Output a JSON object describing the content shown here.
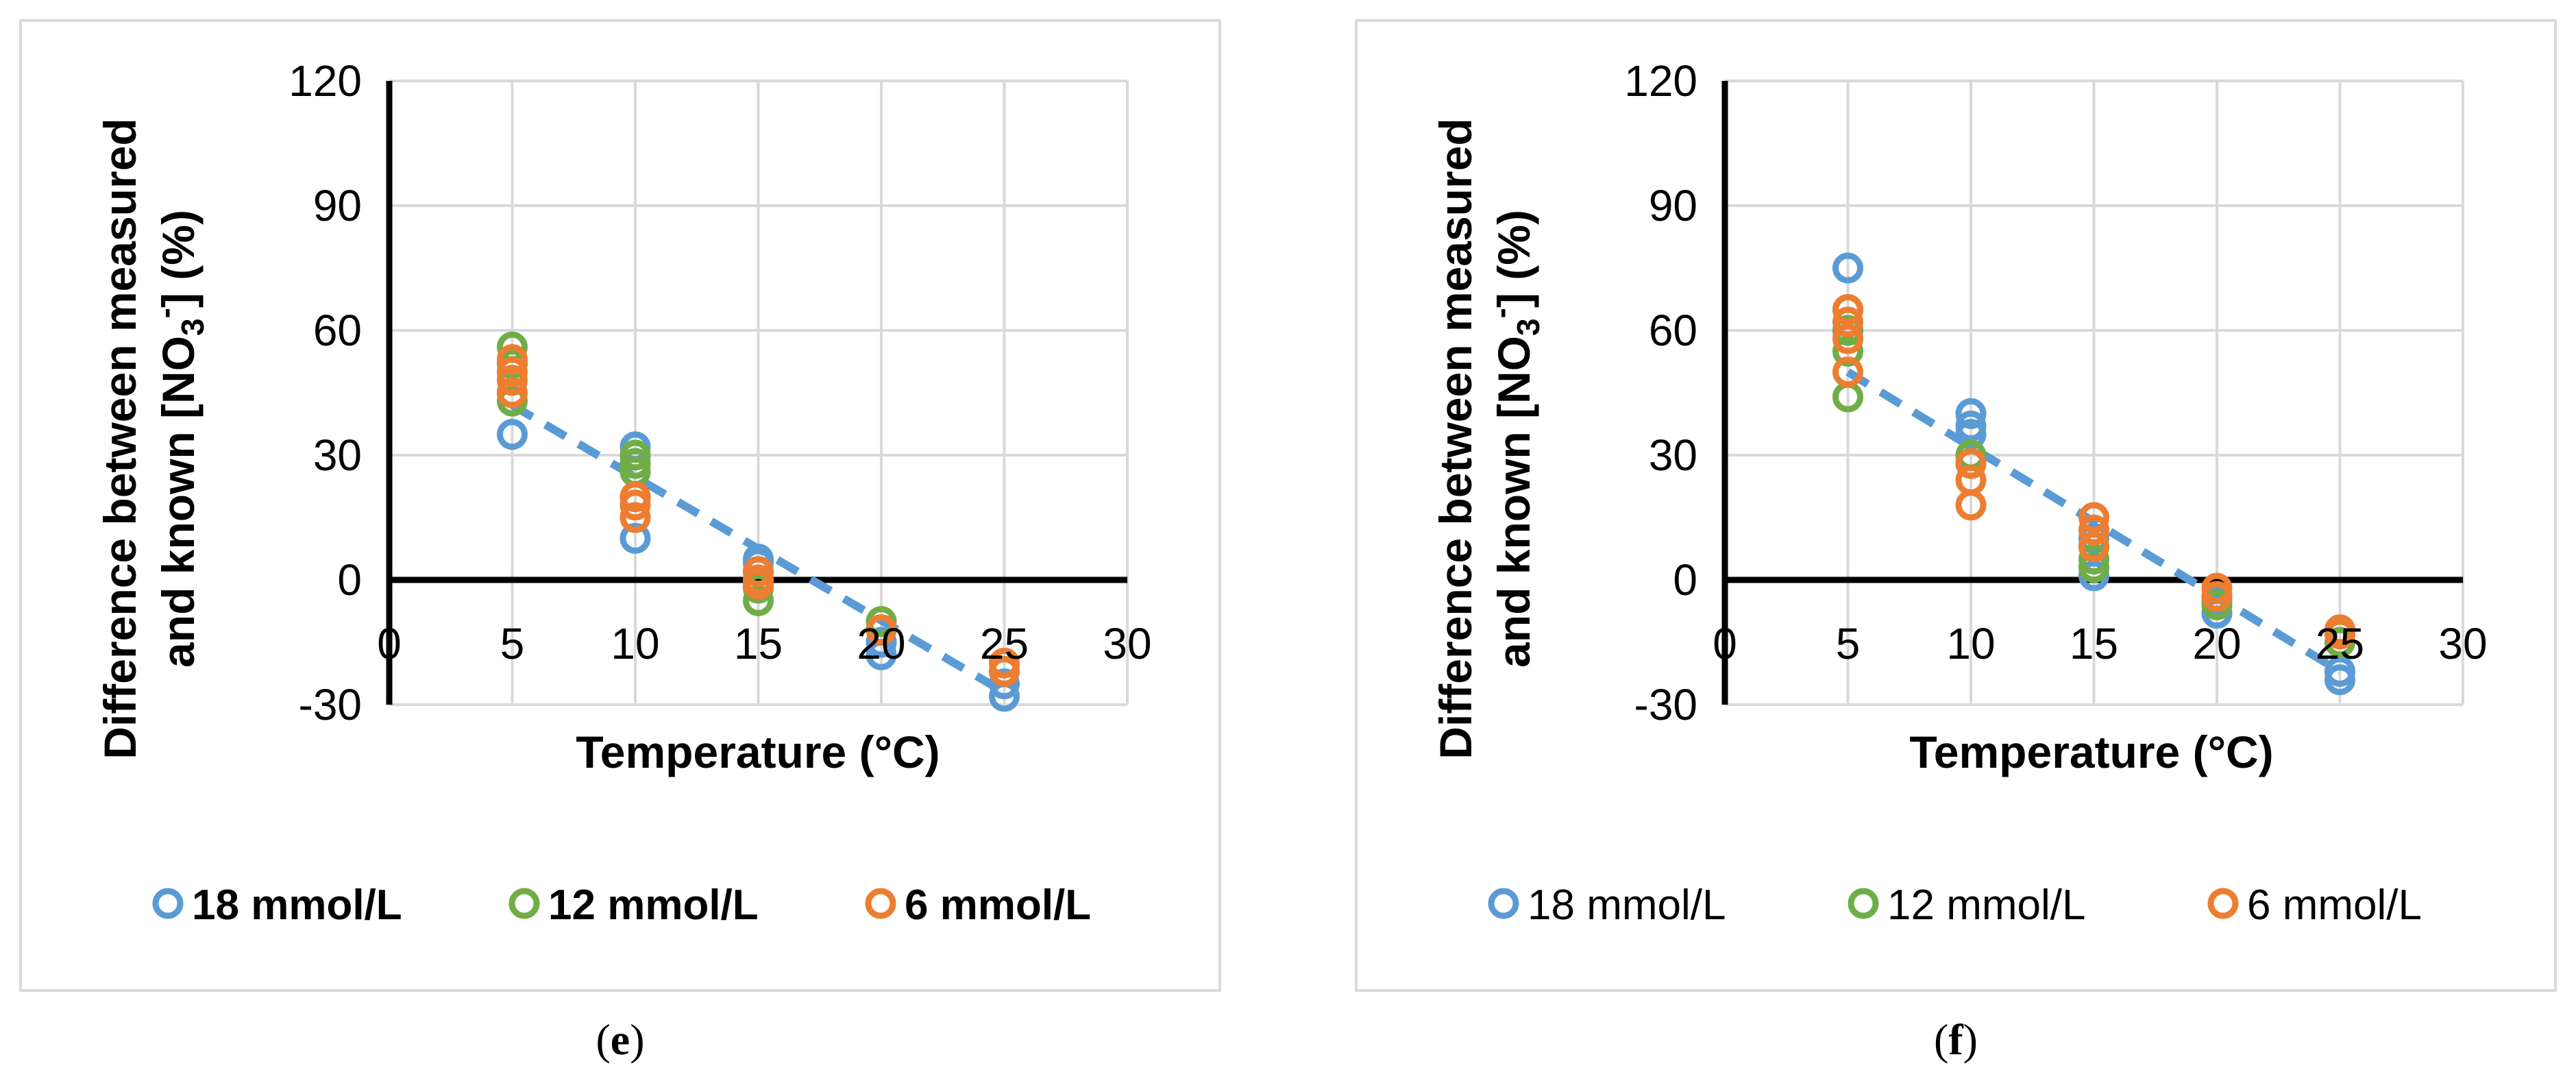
{
  "chart_data": [
    {
      "type": "scatter",
      "panel_label": "e",
      "caption_open": "(",
      "caption_close": ")",
      "xlabel": "Temperature (°C)",
      "ylabel_line1": "Difference between measured",
      "ylabel_line2_prefix": "and known [NO",
      "ylabel_sub": "3",
      "ylabel_sup": "-",
      "ylabel_line2_suffix": "] (%)",
      "xlim": [
        0,
        30
      ],
      "ylim": [
        -30,
        120
      ],
      "xticks": [
        "0",
        "5",
        "10",
        "15",
        "20",
        "25",
        "30"
      ],
      "yticks": [
        "120",
        "90",
        "60",
        "30",
        "0",
        "-30"
      ],
      "grid": true,
      "legend_bold": true,
      "colors": {
        "18": "#5b9bd5",
        "12": "#70ad47",
        "6": "#ed7d31"
      },
      "series": [
        {
          "name": "18 mmol/L",
          "color": "#5b9bd5",
          "x": [
            5,
            5,
            10,
            10,
            15,
            15,
            15,
            20,
            20,
            25,
            25
          ],
          "y": [
            35,
            45,
            32,
            10,
            5,
            4,
            2,
            -15,
            -18,
            -25,
            -28
          ]
        },
        {
          "name": "12 mmol/L",
          "color": "#70ad47",
          "x": [
            5,
            5,
            5,
            10,
            10,
            10,
            15,
            15,
            20,
            20,
            25
          ],
          "y": [
            56,
            52,
            43,
            30,
            28,
            26,
            -2,
            -5,
            -10,
            -12,
            -22
          ]
        },
        {
          "name": "6 mmol/L",
          "color": "#ed7d31",
          "x": [
            5,
            5,
            5,
            5,
            10,
            10,
            10,
            15,
            15,
            15,
            20,
            25,
            25
          ],
          "y": [
            53,
            50,
            48,
            45,
            20,
            18,
            15,
            2,
            0,
            -1,
            -12,
            -20,
            -22
          ]
        }
      ],
      "trendline": {
        "x": [
          5,
          25
        ],
        "y": [
          42,
          -27
        ],
        "color": "#5b9bd5",
        "style": "dashed"
      }
    },
    {
      "type": "scatter",
      "panel_label": "f",
      "caption_open": "(",
      "caption_close": ")",
      "xlabel": "Temperature (°C)",
      "ylabel_line1": "Difference between measured",
      "ylabel_line2_prefix": "and known [NO",
      "ylabel_sub": "3",
      "ylabel_sup": "-",
      "ylabel_line2_suffix": "] (%)",
      "xlim": [
        0,
        30
      ],
      "ylim": [
        -30,
        120
      ],
      "xticks": [
        "0",
        "5",
        "10",
        "15",
        "20",
        "25",
        "30"
      ],
      "yticks": [
        "120",
        "90",
        "60",
        "30",
        "0",
        "-30"
      ],
      "grid": true,
      "legend_bold": false,
      "series": [
        {
          "name": "18 mmol/L",
          "color": "#5b9bd5",
          "x": [
            5,
            5,
            5,
            10,
            10,
            10,
            15,
            15,
            20,
            20,
            25,
            25
          ],
          "y": [
            75,
            65,
            60,
            40,
            37,
            35,
            10,
            1,
            -5,
            -8,
            -22,
            -24
          ]
        },
        {
          "name": "12 mmol/L",
          "color": "#70ad47",
          "x": [
            5,
            5,
            5,
            10,
            10,
            15,
            15,
            15,
            20,
            20,
            25
          ],
          "y": [
            60,
            55,
            44,
            30,
            28,
            8,
            5,
            3,
            -4,
            -6,
            -15
          ]
        },
        {
          "name": "6 mmol/L",
          "color": "#ed7d31",
          "x": [
            5,
            5,
            5,
            5,
            10,
            10,
            10,
            15,
            15,
            15,
            20,
            20,
            25,
            25
          ],
          "y": [
            65,
            62,
            58,
            50,
            28,
            24,
            18,
            15,
            12,
            8,
            -2,
            -4,
            -12,
            -13
          ]
        }
      ],
      "trendline": {
        "x": [
          5,
          25
        ],
        "y": [
          50,
          -22
        ],
        "color": "#5b9bd5",
        "style": "dashed"
      }
    }
  ]
}
